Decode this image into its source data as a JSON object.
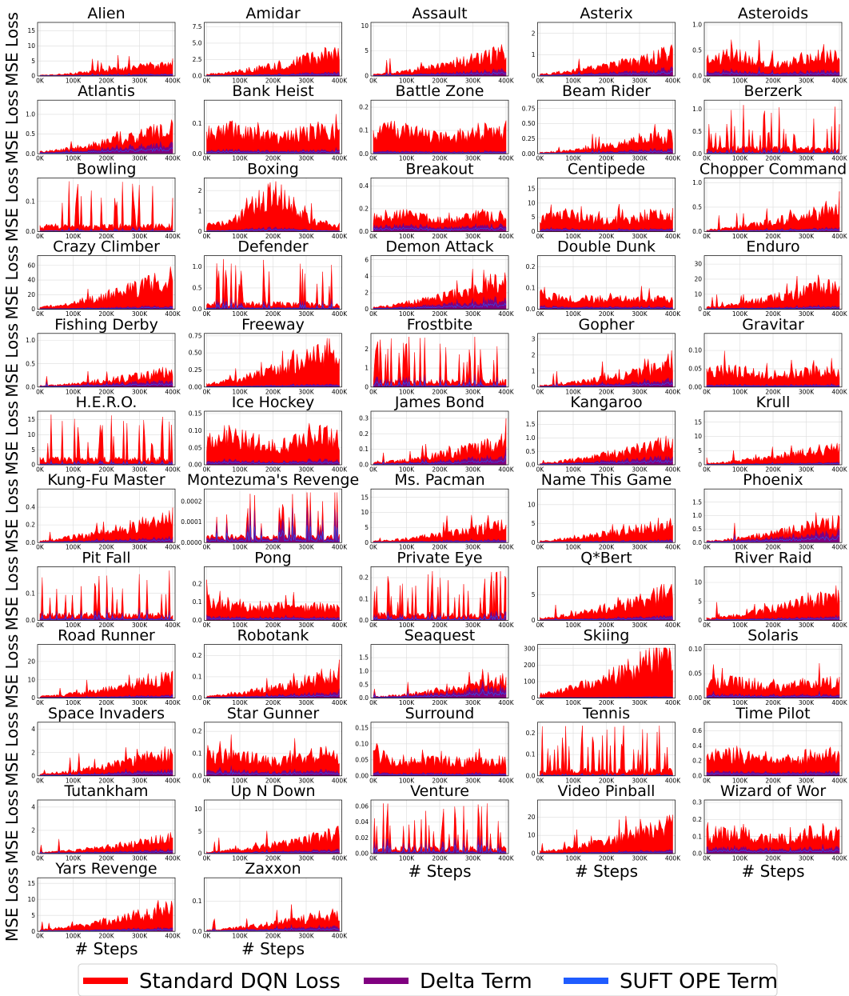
{
  "chart_data": {
    "type": "area",
    "ylabel": "MSE Loss",
    "xlabel": "# Steps",
    "x_ticks": [
      "0K",
      "100K",
      "200K",
      "300K",
      "400K"
    ],
    "x_range": [
      0,
      400000
    ],
    "grid": true,
    "legend_position": "bottom-center",
    "series": [
      {
        "name": "Standard DQN Loss",
        "color": "#ff0000"
      },
      {
        "name": "Delta Term",
        "color": "#800080"
      },
      {
        "name": "SUFT OPE Term",
        "color": "#1f5cff"
      }
    ],
    "subplots": [
      {
        "title": "Alien",
        "yticks": [
          "0",
          "5",
          "10",
          "15"
        ],
        "ymax": 17,
        "profile": "grow",
        "level": 0.25,
        "delta": 0.06
      },
      {
        "title": "Amidar",
        "yticks": [
          "0.0",
          "2.5",
          "5.0",
          "7.5"
        ],
        "ymax": 7.8,
        "profile": "grow",
        "level": 0.45,
        "delta": 0.06
      },
      {
        "title": "Assault",
        "yticks": [
          "0",
          "5",
          "10"
        ],
        "ymax": 10.2,
        "profile": "grow",
        "level": 0.45,
        "delta": 0.1
      },
      {
        "title": "Asterix",
        "yticks": [
          "0",
          "1",
          "2"
        ],
        "ymax": 2.4,
        "profile": "grow",
        "level": 0.45,
        "delta": 0.12
      },
      {
        "title": "Asteroids",
        "yticks": [
          "0.0",
          "0.5",
          "1.0"
        ],
        "ymax": 1.0,
        "profile": "flat",
        "level": 0.42,
        "delta": 0.1
      },
      {
        "title": "Atlantis",
        "yticks": [
          "0.0",
          "0.5",
          "1.0"
        ],
        "ymax": 1.3,
        "profile": "grow",
        "level": 0.5,
        "delta": 0.18
      },
      {
        "title": "Bank Heist",
        "yticks": [
          "0.0",
          "0.1"
        ],
        "ymax": 0.17,
        "profile": "flat",
        "level": 0.5,
        "delta": 0.06
      },
      {
        "title": "Battle Zone",
        "yticks": [
          "0.0",
          "0.1",
          "0.2"
        ],
        "ymax": 0.22,
        "profile": "flat",
        "level": 0.5,
        "delta": 0.04
      },
      {
        "title": "Beam Rider",
        "yticks": [
          "0.00",
          "0.25",
          "0.50",
          "0.75"
        ],
        "ymax": 0.85,
        "profile": "grow",
        "level": 0.35,
        "delta": 0.1
      },
      {
        "title": "Berzerk",
        "yticks": [
          "0.0",
          "0.5",
          "1.0"
        ],
        "ymax": 1.15,
        "profile": "spiky",
        "level": 0.25,
        "delta": 0.06
      },
      {
        "title": "Bowling",
        "yticks": [
          "0.0",
          "0.1"
        ],
        "ymax": 0.17,
        "profile": "spiky",
        "level": 0.5,
        "delta": 0.04
      },
      {
        "title": "Boxing",
        "yticks": [
          "0",
          "1",
          "2"
        ],
        "ymax": 2.5,
        "profile": "hump",
        "level": 0.6,
        "delta": 0.04
      },
      {
        "title": "Breakout",
        "yticks": [
          "0.0",
          "0.2",
          "0.4"
        ],
        "ymax": 0.45,
        "profile": "flat",
        "level": 0.35,
        "delta": 0.15
      },
      {
        "title": "Centipede",
        "yticks": [
          "0",
          "5",
          "10",
          "15"
        ],
        "ymax": 18,
        "profile": "flat",
        "level": 0.35,
        "delta": 0.06
      },
      {
        "title": "Chopper Command",
        "yticks": [
          "0.0",
          "0.5",
          "1.0"
        ],
        "ymax": 1.05,
        "profile": "grow",
        "level": 0.45,
        "delta": 0.06
      },
      {
        "title": "Crazy Climber",
        "yticks": [
          "0",
          "20",
          "40",
          "60"
        ],
        "ymax": 70,
        "profile": "grow",
        "level": 0.6,
        "delta": 0.04
      },
      {
        "title": "Defender",
        "yticks": [
          "0.0",
          "0.5",
          "1.0"
        ],
        "ymax": 1.2,
        "profile": "spiky",
        "level": 0.2,
        "delta": 0.1
      },
      {
        "title": "Demon Attack",
        "yticks": [
          "0",
          "2",
          "4",
          "6"
        ],
        "ymax": 6.2,
        "profile": "grow",
        "level": 0.55,
        "delta": 0.15
      },
      {
        "title": "Double Dunk",
        "yticks": [
          "0.0",
          "0.1",
          "0.2"
        ],
        "ymax": 0.24,
        "profile": "decay",
        "level": 0.35,
        "delta": 0.08
      },
      {
        "title": "Enduro",
        "yticks": [
          "0",
          "10",
          "20",
          "30"
        ],
        "ymax": 34,
        "profile": "grow",
        "level": 0.5,
        "delta": 0.05
      },
      {
        "title": "Fishing Derby",
        "yticks": [
          "0.0",
          "0.5",
          "1.0"
        ],
        "ymax": 1.1,
        "profile": "grow",
        "level": 0.3,
        "delta": 0.18
      },
      {
        "title": "Freeway",
        "yticks": [
          "0.00",
          "0.25",
          "0.50",
          "0.75"
        ],
        "ymax": 0.75,
        "profile": "grow",
        "level": 0.75,
        "delta": 0.03
      },
      {
        "title": "Frostbite",
        "yticks": [
          "0",
          "1",
          "2"
        ],
        "ymax": 2.7,
        "profile": "spiky",
        "level": 0.3,
        "delta": 0.1
      },
      {
        "title": "Gopher",
        "yticks": [
          "0",
          "1",
          "2",
          "3"
        ],
        "ymax": 3.2,
        "profile": "grow",
        "level": 0.4,
        "delta": 0.12
      },
      {
        "title": "Gravitar",
        "yticks": [
          "0.00",
          "0.05",
          "0.10"
        ],
        "ymax": 0.14,
        "profile": "flat",
        "level": 0.35,
        "delta": 0.05
      },
      {
        "title": "H.E.R.O.",
        "yticks": [
          "0",
          "5",
          "10",
          "15"
        ],
        "ymax": 17,
        "profile": "spiky",
        "level": 0.3,
        "delta": 0.05
      },
      {
        "title": "Ice Hockey",
        "yticks": [
          "0.00",
          "0.05",
          "0.10",
          "0.15"
        ],
        "ymax": 0.15,
        "profile": "flat",
        "level": 0.6,
        "delta": 0.06
      },
      {
        "title": "James Bond",
        "yticks": [
          "0.0",
          "0.1",
          "0.2",
          "0.3"
        ],
        "ymax": 0.33,
        "profile": "grow",
        "level": 0.45,
        "delta": 0.15
      },
      {
        "title": "Kangaroo",
        "yticks": [
          "0.0",
          "0.5",
          "1.0",
          "1.5"
        ],
        "ymax": 1.9,
        "profile": "grow",
        "level": 0.45,
        "delta": 0.15
      },
      {
        "title": "Krull",
        "yticks": [
          "0",
          "5",
          "10",
          "15"
        ],
        "ymax": 18,
        "profile": "grow",
        "level": 0.35,
        "delta": 0.05
      },
      {
        "title": "Kung-Fu Master",
        "yticks": [
          "0.0",
          "0.2",
          "0.4"
        ],
        "ymax": 0.58,
        "profile": "grow",
        "level": 0.5,
        "delta": 0.08
      },
      {
        "title": "Montezuma's Revenge",
        "yticks": [
          "0.0000",
          "0.0001",
          "0.0002"
        ],
        "ymax": 0.00025,
        "profile": "spiky",
        "level": 0.3,
        "delta": 0.3
      },
      {
        "title": "Ms. Pacman",
        "yticks": [
          "0",
          "5",
          "10",
          "15"
        ],
        "ymax": 17,
        "profile": "grow",
        "level": 0.35,
        "delta": 0.06
      },
      {
        "title": "Name This Game",
        "yticks": [
          "0",
          "5",
          "10"
        ],
        "ymax": 13.5,
        "profile": "grow",
        "level": 0.4,
        "delta": 0.05
      },
      {
        "title": "Phoenix",
        "yticks": [
          "0.0",
          "0.5",
          "1.0",
          "1.5"
        ],
        "ymax": 1.9,
        "profile": "grow",
        "level": 0.4,
        "delta": 0.2
      },
      {
        "title": "Pit Fall",
        "yticks": [
          "0.0",
          "0.1"
        ],
        "ymax": 0.19,
        "profile": "spiky",
        "level": 0.25,
        "delta": 0.12
      },
      {
        "title": "Pong",
        "yticks": [
          "0.0",
          "0.1",
          "0.2"
        ],
        "ymax": 0.28,
        "profile": "decay",
        "level": 0.45,
        "delta": 0.08
      },
      {
        "title": "Private Eye",
        "yticks": [
          "0.0",
          "0.1",
          "0.2"
        ],
        "ymax": 0.24,
        "profile": "spiky",
        "level": 0.25,
        "delta": 0.08
      },
      {
        "title": "Q*Bert",
        "yticks": [
          "0",
          "5"
        ],
        "ymax": 10,
        "profile": "grow",
        "level": 0.55,
        "delta": 0.06
      },
      {
        "title": "River Raid",
        "yticks": [
          "0",
          "5",
          "10"
        ],
        "ymax": 13.5,
        "profile": "grow",
        "level": 0.5,
        "delta": 0.06
      },
      {
        "title": "Road Runner",
        "yticks": [
          "0",
          "10",
          "20"
        ],
        "ymax": 28,
        "profile": "grow",
        "level": 0.4,
        "delta": 0.05
      },
      {
        "title": "Robotank",
        "yticks": [
          "0.0",
          "0.1",
          "0.2"
        ],
        "ymax": 0.24,
        "profile": "grow",
        "level": 0.45,
        "delta": 0.1
      },
      {
        "title": "Seaquest",
        "yticks": [
          "0.0",
          "0.5",
          "1.0",
          "1.5"
        ],
        "ymax": 1.9,
        "profile": "grow",
        "level": 0.35,
        "delta": 0.25
      },
      {
        "title": "Skiing",
        "yticks": [
          "0",
          "100",
          "200",
          "300"
        ],
        "ymax": 310,
        "profile": "grow",
        "level": 0.9,
        "delta": 0.01
      },
      {
        "title": "Solaris",
        "yticks": [
          "0.00",
          "0.05",
          "0.10"
        ],
        "ymax": 0.105,
        "profile": "flat",
        "level": 0.35,
        "delta": 0.08
      },
      {
        "title": "Space Invaders",
        "yticks": [
          "0",
          "2",
          "4"
        ],
        "ymax": 4.4,
        "profile": "grow",
        "level": 0.45,
        "delta": 0.1
      },
      {
        "title": "Star Gunner",
        "yticks": [
          "0.0",
          "0.1",
          "0.2"
        ],
        "ymax": 0.23,
        "profile": "flat",
        "level": 0.45,
        "delta": 0.1
      },
      {
        "title": "Surround",
        "yticks": [
          "0.00",
          "0.05",
          "0.10",
          "0.15"
        ],
        "ymax": 0.16,
        "profile": "decay",
        "level": 0.5,
        "delta": 0.06
      },
      {
        "title": "Tennis",
        "yticks": [
          "0.0",
          "0.1",
          "0.2"
        ],
        "ymax": 0.24,
        "profile": "spiky",
        "level": 0.25,
        "delta": 0.02
      },
      {
        "title": "Time Pilot",
        "yticks": [
          "0.0",
          "0.2",
          "0.4",
          "0.6"
        ],
        "ymax": 0.68,
        "profile": "flat",
        "level": 0.45,
        "delta": 0.08
      },
      {
        "title": "Tutankham",
        "yticks": [
          "0",
          "2",
          "4"
        ],
        "ymax": 4.4,
        "profile": "grow",
        "level": 0.3,
        "delta": 0.1
      },
      {
        "title": "Up N Down",
        "yticks": [
          "0",
          "5",
          "10"
        ],
        "ymax": 11.5,
        "profile": "grow",
        "level": 0.4,
        "delta": 0.08
      },
      {
        "title": "Venture",
        "yticks": [
          "0.00",
          "0.02",
          "0.04",
          "0.06"
        ],
        "ymax": 0.065,
        "profile": "spiky",
        "level": 0.1,
        "delta": 0.15
      },
      {
        "title": "Video Pinball",
        "yticks": [
          "0",
          "10",
          "20"
        ],
        "ymax": 28,
        "profile": "grow",
        "level": 0.55,
        "delta": 0.04
      },
      {
        "title": "Wizard of Wor",
        "yticks": [
          "0.0",
          "0.1",
          "0.2",
          "0.3"
        ],
        "ymax": 0.3,
        "profile": "flat",
        "level": 0.45,
        "delta": 0.12
      },
      {
        "title": "Yars Revenge",
        "yticks": [
          "0",
          "5",
          "10",
          "15"
        ],
        "ymax": 16,
        "profile": "grow",
        "level": 0.45,
        "delta": 0.06
      },
      {
        "title": "Zaxxon",
        "yticks": [
          "0.0",
          "0.1"
        ],
        "ymax": 0.17,
        "profile": "grow",
        "level": 0.35,
        "delta": 0.12
      }
    ]
  }
}
